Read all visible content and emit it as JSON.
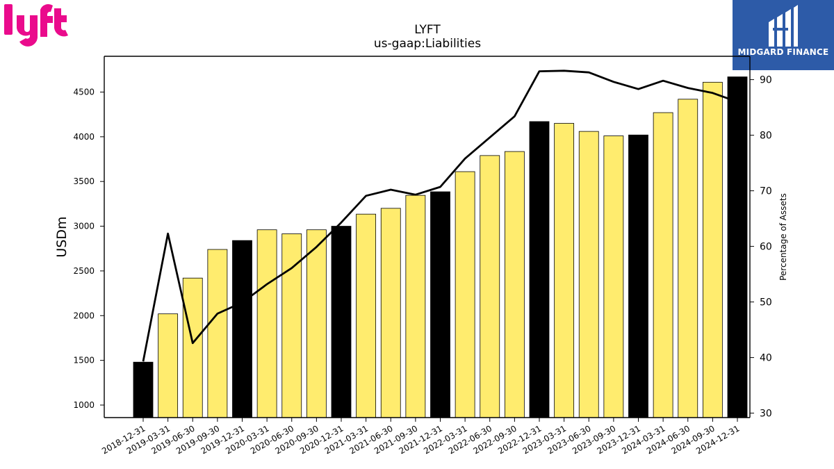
{
  "branding": {
    "left_logo_icon": "lyft-logo",
    "left_logo_color": "#ea0b8c",
    "right_logo_icon": "midgard-finance-logo",
    "right_logo_text": "MIDGARD FINANCE",
    "right_logo_bg": "#2d5ba8"
  },
  "chart_data": {
    "type": "bar",
    "title": "LYFT",
    "subtitle": "us-gaap:Liabilities",
    "ylabel": "USDm",
    "y2label": "Percentage of Assets",
    "ylim": [
      860,
      4900
    ],
    "y2lim": [
      29.2,
      94.2
    ],
    "yticks": [
      1000,
      1500,
      2000,
      2500,
      3000,
      3500,
      4000,
      4500
    ],
    "y2ticks": [
      30,
      40,
      50,
      60,
      70,
      80,
      90
    ],
    "categories": [
      "2018-12-31",
      "2019-03-31",
      "2019-06-30",
      "2019-09-30",
      "2019-12-31",
      "2020-03-31",
      "2020-06-30",
      "2020-09-30",
      "2020-12-31",
      "2021-03-31",
      "2021-06-30",
      "2021-09-30",
      "2021-12-31",
      "2022-03-31",
      "2022-06-30",
      "2022-09-30",
      "2022-12-31",
      "2023-03-31",
      "2023-06-30",
      "2023-09-30",
      "2023-12-31",
      "2024-03-31",
      "2024-06-30",
      "2024-09-30",
      "2024-12-31"
    ],
    "values": [
      1480,
      2020,
      2420,
      2740,
      2840,
      2960,
      2915,
      2960,
      3000,
      3135,
      3200,
      3345,
      3385,
      3610,
      3790,
      3835,
      4170,
      4150,
      4060,
      4010,
      4020,
      4270,
      4420,
      4610,
      4670
    ],
    "bar_colors": [
      "#000000",
      "#ffec6e",
      "#ffec6e",
      "#ffec6e",
      "#000000",
      "#ffec6e",
      "#ffec6e",
      "#ffec6e",
      "#000000",
      "#ffec6e",
      "#ffec6e",
      "#ffec6e",
      "#000000",
      "#ffec6e",
      "#ffec6e",
      "#ffec6e",
      "#000000",
      "#ffec6e",
      "#ffec6e",
      "#ffec6e",
      "#000000",
      "#ffec6e",
      "#ffec6e",
      "#ffec6e",
      "#000000"
    ],
    "line_values": [
      39.3,
      62.3,
      42.6,
      47.9,
      49.9,
      53.2,
      56.1,
      59.9,
      64.3,
      69.1,
      70.2,
      69.3,
      70.7,
      75.8,
      79.6,
      83.4,
      91.5,
      91.6,
      91.3,
      89.6,
      88.3,
      89.8,
      88.5,
      87.6,
      86.0
    ],
    "line_color": "#000000"
  }
}
